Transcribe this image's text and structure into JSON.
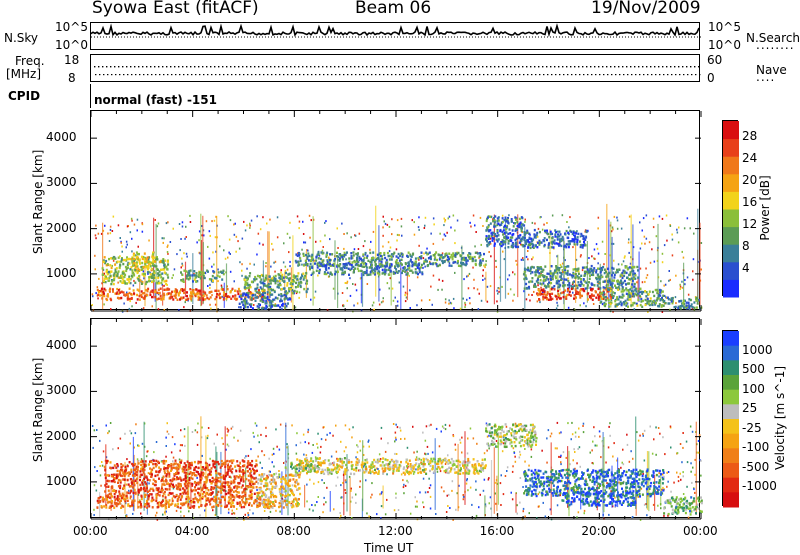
{
  "header": {
    "title_left": "Syowa East (fitACF)",
    "title_center": "Beam 06",
    "title_right": "19/Nov/2009"
  },
  "top_panels": {
    "nsky_label": "N.Sky",
    "nsky_top": "10^5",
    "nsky_bottom": "10^0",
    "nsearch_label": "N.Search",
    "nsearch_dots": "........",
    "nsearch_top": "10^5",
    "nsearch_bottom": "10^0",
    "freq_label": "Freq.",
    "freq_unit": "[MHz]",
    "freq_top": "18",
    "freq_bottom": "8",
    "nave_label": "Nave",
    "nave_dots": "....",
    "nave_top": "60",
    "nave_bottom": "0",
    "cpid_label": "CPID",
    "cpid_value": "normal (fast) -151"
  },
  "chart_data": [
    {
      "type": "heatmap",
      "parameter": "Power",
      "ylabel": "Slant Range [km]",
      "xlabel": "Time UT",
      "x_ticks": [
        "00:00",
        "04:00",
        "08:00",
        "12:00",
        "16:00",
        "20:00",
        "00:00"
      ],
      "x_range_hours": [
        0,
        24
      ],
      "y_ticks": [
        1000,
        2000,
        3000,
        4000
      ],
      "ylim": [
        180,
        4600
      ],
      "colorbar": {
        "label": "Power [dB]",
        "ticks": [
          "4",
          "8",
          "12",
          "16",
          "20",
          "24",
          "28"
        ],
        "colors": [
          "#1a2cff",
          "#2a4fcf",
          "#3a7f99",
          "#5b9c55",
          "#8bbf3a",
          "#f2d31b",
          "#f5a313",
          "#f0781a",
          "#e8401a",
          "#d90f10"
        ]
      },
      "echo_regions": [
        {
          "t0": 0.2,
          "t1": 6.8,
          "r0": 450,
          "r1": 700,
          "level": 0.8
        },
        {
          "t0": 0.4,
          "t1": 3.0,
          "r0": 800,
          "r1": 1400,
          "level": 0.45
        },
        {
          "t0": 1.5,
          "t1": 2.5,
          "r0": 1100,
          "r1": 1500,
          "level": 0.55
        },
        {
          "t0": 3.5,
          "t1": 5.2,
          "r0": 850,
          "r1": 1100,
          "level": 0.35
        },
        {
          "t0": 5.8,
          "t1": 7.8,
          "r0": 250,
          "r1": 600,
          "level": 0.2
        },
        {
          "t0": 6.0,
          "t1": 8.5,
          "r0": 600,
          "r1": 1050,
          "level": 0.35
        },
        {
          "t0": 8.0,
          "t1": 15.5,
          "r0": 1200,
          "r1": 1500,
          "level": 0.3
        },
        {
          "t0": 8.5,
          "t1": 13.0,
          "r0": 1000,
          "r1": 1250,
          "level": 0.25
        },
        {
          "t0": 15.5,
          "t1": 17.0,
          "r0": 2000,
          "r1": 2300,
          "level": 0.25
        },
        {
          "t0": 15.5,
          "t1": 19.5,
          "r0": 1600,
          "r1": 2000,
          "level": 0.2
        },
        {
          "t0": 17.0,
          "t1": 21.5,
          "r0": 700,
          "r1": 1200,
          "level": 0.3
        },
        {
          "t0": 17.5,
          "t1": 20.5,
          "r0": 450,
          "r1": 700,
          "level": 0.85
        },
        {
          "t0": 20.0,
          "t1": 22.5,
          "r0": 300,
          "r1": 700,
          "level": 0.35
        },
        {
          "t0": 22.5,
          "t1": 24.0,
          "r0": 250,
          "r1": 500,
          "level": 0.3
        }
      ]
    },
    {
      "type": "heatmap",
      "parameter": "Velocity",
      "ylabel": "Slant Range [km]",
      "xlabel": "Time UT",
      "x_ticks": [
        "00:00",
        "04:00",
        "08:00",
        "12:00",
        "16:00",
        "20:00",
        "00:00"
      ],
      "x_range_hours": [
        0,
        24
      ],
      "y_ticks": [
        1000,
        2000,
        3000,
        4000
      ],
      "ylim": [
        180,
        4600
      ],
      "colorbar": {
        "label": "Velocity [m s^-1]",
        "ticks": [
          "1000",
          "500",
          "100",
          "25",
          "-25",
          "-100",
          "-500",
          "-1000"
        ],
        "colors": [
          "#1a3fff",
          "#2a6ad5",
          "#2d8f70",
          "#5aa33a",
          "#8cc83c",
          "#bdbdbd",
          "#f4c21a",
          "#f5a313",
          "#f07f18",
          "#ec5a16",
          "#e22a12",
          "#d70f10"
        ]
      },
      "echo_regions": [
        {
          "t0": 0.2,
          "t1": 7.0,
          "r0": 450,
          "r1": 700,
          "level": 0.75
        },
        {
          "t0": 0.5,
          "t1": 6.5,
          "r0": 700,
          "r1": 1500,
          "level": 0.8
        },
        {
          "t0": 6.5,
          "t1": 8.2,
          "r0": 450,
          "r1": 1200,
          "level": 0.55
        },
        {
          "t0": 8.0,
          "t1": 15.5,
          "r0": 1200,
          "r1": 1550,
          "level": 0.5
        },
        {
          "t0": 7.5,
          "t1": 9.0,
          "r0": 1300,
          "r1": 1450,
          "level": 0.4
        },
        {
          "t0": 15.5,
          "t1": 17.5,
          "r0": 1800,
          "r1": 2300,
          "level": 0.4
        },
        {
          "t0": 17.0,
          "t1": 22.5,
          "r0": 700,
          "r1": 1300,
          "level": 0.15
        },
        {
          "t0": 18.5,
          "t1": 21.5,
          "r0": 500,
          "r1": 800,
          "level": 0.1
        },
        {
          "t0": 22.5,
          "t1": 24.0,
          "r0": 300,
          "r1": 700,
          "level": 0.3
        }
      ]
    }
  ]
}
